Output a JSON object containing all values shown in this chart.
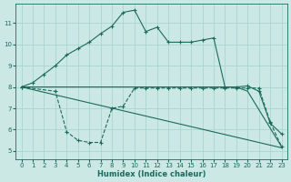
{
  "xlabel": "Humidex (Indice chaleur)",
  "bg_color": "#cce8e5",
  "grid_color": "#aad4d0",
  "line_color": "#1a6b5a",
  "xlim": [
    -0.5,
    23.5
  ],
  "ylim": [
    4.6,
    11.9
  ],
  "xticks": [
    0,
    1,
    2,
    3,
    4,
    5,
    6,
    7,
    8,
    9,
    10,
    11,
    12,
    13,
    14,
    15,
    16,
    17,
    18,
    19,
    20,
    21,
    22,
    23
  ],
  "yticks": [
    5,
    6,
    7,
    8,
    9,
    10,
    11
  ],
  "curve1_x": [
    0,
    1,
    2,
    3,
    4,
    5,
    6,
    7,
    8,
    9,
    10,
    11,
    12,
    13,
    14,
    15,
    16,
    17,
    18,
    19,
    20,
    21,
    22,
    23
  ],
  "curve1_y": [
    8.0,
    8.2,
    8.6,
    9.0,
    9.5,
    9.8,
    10.1,
    10.5,
    10.85,
    11.5,
    11.6,
    10.6,
    10.8,
    10.1,
    10.1,
    10.1,
    10.2,
    10.3,
    8.0,
    8.0,
    8.05,
    7.8,
    6.3,
    5.8
  ],
  "curve2_x": [
    0,
    3,
    4,
    5,
    6,
    7,
    8,
    9,
    10,
    11,
    12,
    13,
    14,
    15,
    16,
    17,
    18,
    19,
    20,
    21,
    22,
    23
  ],
  "curve2_y": [
    8.0,
    7.8,
    5.9,
    5.5,
    5.4,
    5.4,
    7.0,
    7.1,
    7.95,
    7.95,
    7.95,
    7.95,
    7.95,
    7.95,
    7.95,
    7.95,
    7.95,
    7.95,
    7.95,
    7.95,
    6.35,
    5.2
  ],
  "curve3_x": [
    0,
    19,
    20,
    23
  ],
  "curve3_y": [
    8.0,
    8.0,
    7.8,
    5.2
  ],
  "curve4_x": [
    0,
    23
  ],
  "curve4_y": [
    8.0,
    5.15
  ]
}
